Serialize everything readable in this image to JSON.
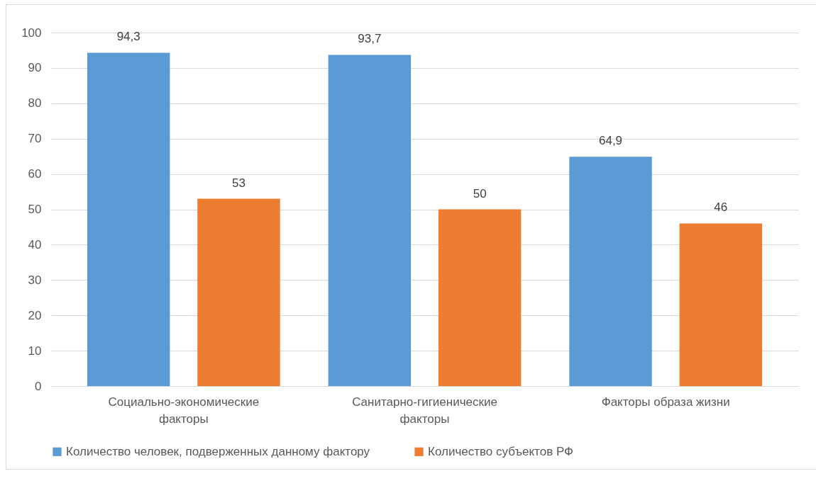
{
  "chart_data": {
    "type": "bar",
    "categories": [
      "Социально-экономические факторы",
      "Санитарно-гигиенические факторы",
      "Факторы образа жизни"
    ],
    "series": [
      {
        "name": "Количество человек, подверженных данному фактору",
        "color": "#5b9bd5",
        "values": [
          94.3,
          93.7,
          64.9
        ],
        "value_labels": [
          "94,3",
          "93,7",
          "64,9"
        ]
      },
      {
        "name": "Количество субъектов РФ",
        "color": "#ed7d31",
        "values": [
          53,
          50,
          46
        ],
        "value_labels": [
          "53",
          "50",
          "46"
        ]
      }
    ],
    "ylim": [
      0,
      100
    ],
    "yticks": [
      0,
      10,
      20,
      30,
      40,
      50,
      60,
      70,
      80,
      90,
      100
    ],
    "grid": "y",
    "legend": "bottom"
  }
}
